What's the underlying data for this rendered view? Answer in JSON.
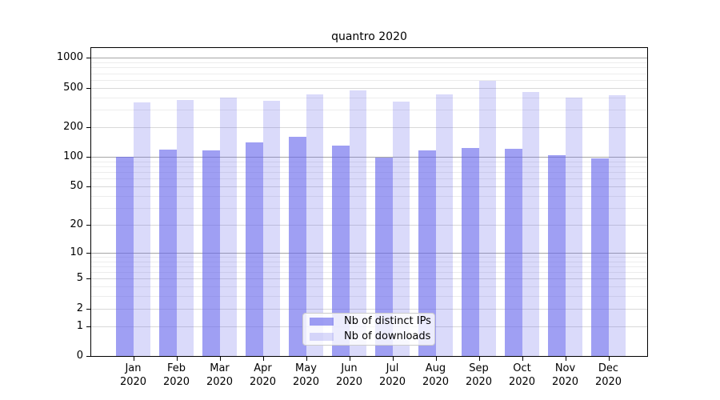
{
  "title": "quantro 2020",
  "chart_data": {
    "type": "bar",
    "title": "quantro 2020",
    "categories": [
      {
        "month": "Jan",
        "year": "2020"
      },
      {
        "month": "Feb",
        "year": "2020"
      },
      {
        "month": "Mar",
        "year": "2020"
      },
      {
        "month": "Apr",
        "year": "2020"
      },
      {
        "month": "May",
        "year": "2020"
      },
      {
        "month": "Jun",
        "year": "2020"
      },
      {
        "month": "Jul",
        "year": "2020"
      },
      {
        "month": "Aug",
        "year": "2020"
      },
      {
        "month": "Sep",
        "year": "2020"
      },
      {
        "month": "Oct",
        "year": "2020"
      },
      {
        "month": "Nov",
        "year": "2020"
      },
      {
        "month": "Dec",
        "year": "2020"
      }
    ],
    "series": [
      {
        "name": "Nb of distinct IPs",
        "color": "rgba(100,100,235,0.62)",
        "values": [
          100,
          118,
          116,
          141,
          160,
          130,
          98,
          117,
          123,
          120,
          105,
          96
        ]
      },
      {
        "name": "Nb of downloads",
        "color": "rgba(100,100,235,0.24)",
        "values": [
          355,
          375,
          400,
          372,
          428,
          468,
          365,
          425,
          585,
          450,
          400,
          418
        ]
      }
    ],
    "yscale": "log10(1+x)",
    "ylim": [
      0,
      1305
    ],
    "yticks": [
      0,
      1,
      2,
      5,
      10,
      20,
      50,
      100,
      200,
      500,
      1000
    ],
    "minor_gridlines": [
      3,
      4,
      6,
      7,
      8,
      9,
      30,
      40,
      60,
      70,
      80,
      90,
      300,
      400,
      600,
      700,
      800,
      900
    ],
    "grid": true,
    "legend_position": "lower center",
    "xlabel": "",
    "ylabel": ""
  },
  "colors": {
    "axis": "#000000",
    "grid_power10": "#a6a6a6",
    "grid_labeled": "#d9d9d9",
    "grid_minor": "#ececec",
    "background": "#ffffff",
    "bar_dark": "rgba(100,100,235,0.62)",
    "bar_light": "rgba(100,100,235,0.24)"
  },
  "legend": {
    "entries": [
      "Nb of distinct IPs",
      "Nb of downloads"
    ]
  }
}
